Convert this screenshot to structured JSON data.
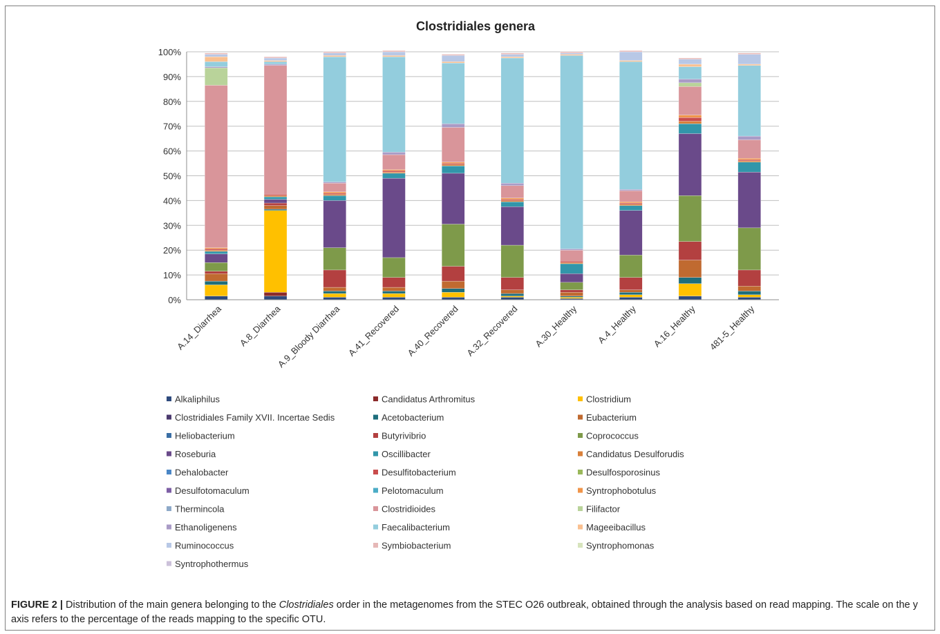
{
  "chart_data": {
    "type": "bar",
    "stacked": true,
    "title": "Clostridiales genera",
    "xlabel": "",
    "ylabel": "",
    "ylim": [
      0,
      100
    ],
    "y_ticks": [
      "0%",
      "10%",
      "20%",
      "30%",
      "40%",
      "50%",
      "60%",
      "70%",
      "80%",
      "90%",
      "100%"
    ],
    "grid": true,
    "legend_position": "bottom",
    "categories": [
      "A.14_Diarrhea",
      "A.8_Diarrhea",
      "A.9_Bloody Diarrhea",
      "A.41_Recovered",
      "A.40_Recovered",
      "A.32_Recovered",
      "A.30_Healthy",
      "A.4_Healthy",
      "A.16_Healthy",
      "481-5_Healthy"
    ],
    "series": [
      {
        "name": "Alkaliphilus",
        "color": "#2e4a7d",
        "values": [
          1.5,
          1.5,
          1,
          1,
          1,
          1,
          0.5,
          1,
          1.5,
          1
        ]
      },
      {
        "name": "Candidatus Arthromitus",
        "color": "#8b2a2a",
        "values": [
          0,
          1.5,
          0,
          0,
          0,
          0,
          0,
          0,
          0,
          0
        ]
      },
      {
        "name": "Clostridium",
        "color": "#ffc000",
        "values": [
          4.5,
          33,
          1.5,
          1.5,
          2,
          0.5,
          0.5,
          1,
          5,
          1
        ]
      },
      {
        "name": "Clostridiales Family XVII. Incertae Sedis",
        "color": "#4b3a6e",
        "values": [
          0,
          0,
          0,
          0,
          0,
          0,
          0,
          0,
          0,
          0
        ]
      },
      {
        "name": "Acetobacterium",
        "color": "#1e6e7c",
        "values": [
          1.5,
          0.5,
          1,
          1,
          1.5,
          1,
          0.5,
          1,
          2.5,
          1.5
        ]
      },
      {
        "name": "Eubacterium",
        "color": "#c06a30",
        "values": [
          3,
          1.5,
          1.5,
          1.5,
          3,
          1.5,
          1.5,
          1,
          7,
          2
        ]
      },
      {
        "name": "Heliobacterium",
        "color": "#3a6ea5",
        "values": [
          0,
          0,
          0,
          0,
          0,
          0,
          0,
          0,
          0,
          0
        ]
      },
      {
        "name": "Butyrivibrio",
        "color": "#b34040",
        "values": [
          1,
          1,
          7,
          4,
          6,
          5,
          1,
          5,
          7.5,
          6.5
        ]
      },
      {
        "name": "Coprococcus",
        "color": "#7e9a4a",
        "values": [
          3.5,
          0,
          9,
          8,
          17,
          13,
          3,
          9,
          18.5,
          17
        ]
      },
      {
        "name": "Roseburia",
        "color": "#6a4a8a",
        "values": [
          3.5,
          1.5,
          19,
          32,
          20.5,
          15.5,
          3.5,
          18,
          25,
          22.5
        ]
      },
      {
        "name": "Oscillibacter",
        "color": "#3296aa",
        "values": [
          1,
          1,
          2,
          2,
          3,
          2,
          4,
          2,
          4,
          4
        ]
      },
      {
        "name": "Candidatus Desulforudis",
        "color": "#d9803a",
        "values": [
          0.5,
          0.5,
          0.5,
          0.5,
          0.5,
          0.5,
          0.5,
          0.5,
          1,
          0.5
        ]
      },
      {
        "name": "Dehalobacter",
        "color": "#4a86c6",
        "values": [
          0,
          0,
          0,
          0,
          0,
          0,
          0,
          0,
          0,
          0
        ]
      },
      {
        "name": "Desulfitobacterium",
        "color": "#c94c4c",
        "values": [
          0.5,
          0.5,
          0.5,
          0.5,
          0.5,
          0.5,
          0.5,
          0.5,
          1.5,
          0.5
        ]
      },
      {
        "name": "Desulfosporosinus",
        "color": "#9ab85a",
        "values": [
          0,
          0,
          0,
          0,
          0,
          0,
          0,
          0,
          0,
          0
        ]
      },
      {
        "name": "Desulfotomaculum",
        "color": "#7d5ea5",
        "values": [
          0,
          0,
          0,
          0,
          0,
          0,
          0,
          0,
          0,
          0
        ]
      },
      {
        "name": "Pelotomaculum",
        "color": "#4bacc6",
        "values": [
          0,
          0,
          0,
          0,
          0,
          0,
          0,
          0,
          0,
          0
        ]
      },
      {
        "name": "Syntrophobotulus",
        "color": "#f0954a",
        "values": [
          0.5,
          0,
          0.5,
          0.5,
          0.5,
          0.5,
          0,
          0.5,
          1,
          0.5
        ]
      },
      {
        "name": "Thermincola",
        "color": "#8ea9c9",
        "values": [
          0,
          0,
          0,
          0,
          0,
          0,
          0,
          0,
          0,
          0
        ]
      },
      {
        "name": "Clostridioides",
        "color": "#d9959a",
        "values": [
          65.5,
          52,
          3.5,
          6,
          14,
          5,
          4.5,
          4.5,
          11.5,
          7.5
        ]
      },
      {
        "name": "Filifactor",
        "color": "#b9d39a",
        "values": [
          7,
          0,
          0,
          0,
          0,
          0,
          0,
          0,
          1.5,
          0
        ]
      },
      {
        "name": "Ethanoligenens",
        "color": "#a99bc6",
        "values": [
          0.5,
          0.5,
          0.5,
          1,
          1.5,
          1,
          0.5,
          0.5,
          1.5,
          1.5
        ]
      },
      {
        "name": "Faecalibacterium",
        "color": "#93cddd",
        "values": [
          2,
          1,
          50.5,
          38.5,
          24.5,
          50.5,
          78,
          51.5,
          5,
          28.5
        ]
      },
      {
        "name": "Mageeibacillus",
        "color": "#fac090",
        "values": [
          2,
          0.5,
          0.5,
          0.5,
          0.5,
          0.5,
          0.5,
          0.5,
          1,
          0.5
        ]
      },
      {
        "name": "Ruminococcus",
        "color": "#b8c8e6",
        "values": [
          1,
          1,
          1,
          1.5,
          2.5,
          1,
          0.5,
          3.5,
          2,
          4
        ]
      },
      {
        "name": "Symbiobacterium",
        "color": "#e6b8b7",
        "values": [
          0.5,
          0.5,
          0.5,
          0.5,
          0.5,
          0.5,
          0.5,
          0.5,
          0.5,
          0.5
        ]
      },
      {
        "name": "Syntrophomonas",
        "color": "#d7e4bd",
        "values": [
          0,
          0,
          0,
          0,
          0,
          0,
          0,
          0,
          0,
          0
        ]
      },
      {
        "name": "Syntrophothermus",
        "color": "#ccc1da",
        "values": [
          0,
          0,
          0,
          0,
          0,
          0,
          0,
          0,
          0,
          0
        ]
      }
    ]
  },
  "caption": {
    "label": "FIGURE 2 |",
    "text_before": " Distribution of the main genera belonging to the ",
    "italic": "Clostridiales",
    "text_after": " order in the metagenomes from the STEC O26 outbreak, obtained through the analysis based on read mapping. The scale on the y axis refers to the percentage of the reads mapping to the specific OTU."
  }
}
